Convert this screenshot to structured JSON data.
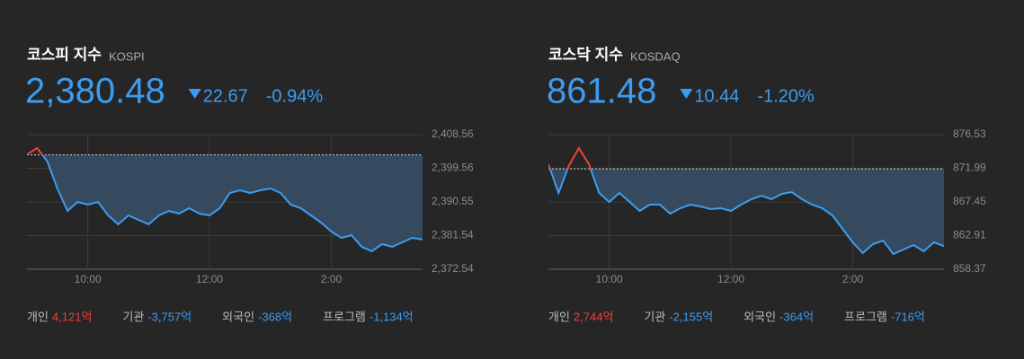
{
  "chart_data": [
    {
      "type": "line",
      "title": "코스피 지수",
      "subtitle": "KOSPI",
      "price": "2,380.48",
      "change": "22.67",
      "change_percent": "-0.94%",
      "color": "#3d9cf0",
      "color_up": "#f0403c",
      "reference": 2403.15,
      "categories": [
        "9:00",
        "9:10",
        "9:20",
        "9:30",
        "9:40",
        "9:50",
        "10:00",
        "10:10",
        "10:20",
        "10:30",
        "10:40",
        "10:50",
        "11:00",
        "11:10",
        "11:20",
        "11:30",
        "11:40",
        "11:50",
        "12:00",
        "12:10",
        "12:20",
        "12:30",
        "12:40",
        "12:50",
        "1:00",
        "1:10",
        "1:20",
        "1:30",
        "1:40",
        "1:50",
        "2:00",
        "2:10",
        "2:20",
        "2:30",
        "2:40",
        "2:50",
        "3:00",
        "3:10",
        "3:20",
        "3:30"
      ],
      "values": [
        2403.28,
        2404.96,
        2401.4,
        2394.15,
        2388.15,
        2390.55,
        2389.83,
        2390.55,
        2386.95,
        2384.55,
        2386.95,
        2385.75,
        2384.55,
        2386.95,
        2388.15,
        2387.43,
        2388.87,
        2387.43,
        2386.95,
        2388.87,
        2392.95,
        2393.67,
        2392.95,
        2393.67,
        2394.15,
        2392.95,
        2389.83,
        2388.87,
        2386.95,
        2385.03,
        2382.63,
        2380.95,
        2381.67,
        2378.55,
        2377.35,
        2379.27,
        2378.55,
        2379.75,
        2380.95,
        2380.48
      ],
      "xticks": [
        "10:00",
        "12:00",
        "2:00"
      ],
      "ylim": [
        2372.54,
        2408.56
      ],
      "yticks": [
        {
          "value": 2408.56,
          "label": "2,408.56"
        },
        {
          "value": 2399.56,
          "label": "2,399.56"
        },
        {
          "value": 2390.55,
          "label": "2,390.55"
        },
        {
          "value": 2381.54,
          "label": "2,381.54"
        },
        {
          "value": 2372.54,
          "label": "2,372.54"
        }
      ],
      "grid": true,
      "investors": [
        {
          "label": "개인",
          "value": "4,121억",
          "color": "#f0403c"
        },
        {
          "label": "기관",
          "value": "-3,757억",
          "color": "#3d9cf0"
        },
        {
          "label": "외국인",
          "value": "-368억",
          "color": "#3d9cf0"
        },
        {
          "label": "프로그램",
          "value": "-1,134억",
          "color": "#3d9cf0"
        }
      ]
    },
    {
      "type": "line",
      "title": "코스닥 지수",
      "subtitle": "KOSDAQ",
      "price": "861.48",
      "change": "10.44",
      "change_percent": "-1.20%",
      "color": "#3d9cf0",
      "color_up": "#f0403c",
      "reference": 871.92,
      "categories": [
        "9:00",
        "9:10",
        "9:20",
        "9:30",
        "9:40",
        "9:50",
        "10:00",
        "10:10",
        "10:20",
        "10:30",
        "10:40",
        "10:50",
        "11:00",
        "11:10",
        "11:20",
        "11:30",
        "11:40",
        "11:50",
        "12:00",
        "12:10",
        "12:20",
        "12:30",
        "12:40",
        "12:50",
        "1:00",
        "1:10",
        "1:20",
        "1:30",
        "1:40",
        "1:50",
        "2:00",
        "2:10",
        "2:20",
        "2:30",
        "2:40",
        "2:50",
        "3:00",
        "3:10",
        "3:20",
        "3:30"
      ],
      "values": [
        872.54,
        868.66,
        872.29,
        874.71,
        872.54,
        868.66,
        867.45,
        868.66,
        867.45,
        866.24,
        867.09,
        867.09,
        865.88,
        866.6,
        867.09,
        866.85,
        866.48,
        866.6,
        866.24,
        867.09,
        867.81,
        868.3,
        867.81,
        868.54,
        868.78,
        867.81,
        867.09,
        866.6,
        865.63,
        863.82,
        862.0,
        860.55,
        861.76,
        862.24,
        860.43,
        861.03,
        861.64,
        860.79,
        862.0,
        861.48
      ],
      "xticks": [
        "10:00",
        "12:00",
        "2:00"
      ],
      "ylim": [
        858.37,
        876.53
      ],
      "yticks": [
        876.53,
        871.99,
        867.45,
        862.91,
        858.37
      ],
      "grid": true,
      "investors": [
        {
          "label": "개인",
          "value": "2,744억",
          "color": "#f0403c"
        },
        {
          "label": "기관",
          "value": "-2,155억",
          "color": "#3d9cf0"
        },
        {
          "label": "외국인",
          "value": "-364억",
          "color": "#3d9cf0"
        },
        {
          "label": "프로그램",
          "value": "-716억",
          "color": "#3d9cf0"
        }
      ]
    }
  ]
}
